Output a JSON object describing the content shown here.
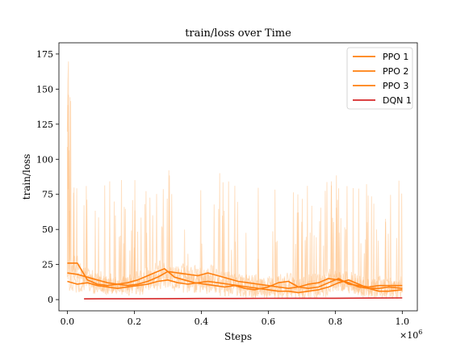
{
  "chart_data": {
    "type": "line",
    "title": "train/loss over Time",
    "xlabel": "Steps",
    "ylabel": "train/loss",
    "x_multiplier_label": "×10",
    "x_multiplier_exp": "6",
    "xlim": [
      -0.025,
      1.045
    ],
    "ylim": [
      -8,
      183
    ],
    "x_ticks": [
      0.0,
      0.2,
      0.4,
      0.6,
      0.8,
      1.0
    ],
    "x_tick_labels": [
      "0.0",
      "0.2",
      "0.4",
      "0.6",
      "0.8",
      "1.0"
    ],
    "y_ticks": [
      0,
      25,
      50,
      75,
      100,
      125,
      150,
      175
    ],
    "y_tick_labels": [
      "0",
      "25",
      "50",
      "75",
      "100",
      "125",
      "150",
      "175"
    ],
    "grid": false,
    "legend_position": "top-right",
    "series": [
      {
        "name": "PPO 1",
        "color": "#ff7f0e",
        "x": [
          0.0,
          0.03,
          0.06,
          0.09,
          0.12,
          0.15,
          0.18,
          0.21,
          0.24,
          0.27,
          0.29,
          0.32,
          0.35,
          0.38,
          0.41,
          0.44,
          0.47,
          0.5,
          0.53,
          0.56,
          0.6,
          0.63,
          0.66,
          0.69,
          0.72,
          0.75,
          0.78,
          0.81,
          0.84,
          0.87,
          0.9,
          0.93,
          0.96,
          1.0
        ],
        "y": [
          26,
          26,
          14,
          11,
          10,
          11,
          12,
          14,
          17,
          20,
          22,
          16,
          14,
          12,
          11,
          10,
          9,
          10,
          8,
          7,
          9,
          12,
          13,
          9,
          8,
          9,
          12,
          15,
          11,
          10,
          9,
          10,
          10,
          10
        ]
      },
      {
        "name": "PPO 2",
        "color": "#ff7f0e",
        "x": [
          0.0,
          0.03,
          0.06,
          0.09,
          0.12,
          0.15,
          0.18,
          0.21,
          0.24,
          0.27,
          0.3,
          0.33,
          0.36,
          0.39,
          0.42,
          0.45,
          0.48,
          0.51,
          0.54,
          0.57,
          0.6,
          0.63,
          0.66,
          0.69,
          0.72,
          0.75,
          0.78,
          0.81,
          0.84,
          0.87,
          0.9,
          0.93,
          0.96,
          1.0
        ],
        "y": [
          19,
          18,
          16,
          14,
          12,
          11,
          10,
          11,
          13,
          16,
          20,
          19,
          18,
          17,
          19,
          17,
          15,
          13,
          12,
          11,
          10,
          9,
          8,
          9,
          11,
          12,
          15,
          14,
          12,
          9,
          8,
          8,
          9,
          8
        ]
      },
      {
        "name": "PPO 3",
        "color": "#ff7f0e",
        "x": [
          0.0,
          0.03,
          0.06,
          0.09,
          0.12,
          0.15,
          0.18,
          0.21,
          0.24,
          0.27,
          0.3,
          0.33,
          0.36,
          0.39,
          0.42,
          0.45,
          0.48,
          0.51,
          0.54,
          0.57,
          0.6,
          0.63,
          0.66,
          0.69,
          0.72,
          0.75,
          0.78,
          0.81,
          0.84,
          0.87,
          0.9,
          0.93,
          0.96,
          1.0
        ],
        "y": [
          13,
          11,
          12,
          10,
          9,
          8,
          9,
          10,
          11,
          13,
          14,
          12,
          11,
          12,
          13,
          12,
          11,
          10,
          9,
          8,
          7,
          6,
          6,
          5,
          6,
          7,
          9,
          12,
          14,
          11,
          8,
          6,
          6,
          7
        ]
      },
      {
        "name": "DQN 1",
        "color": "#d62728",
        "x": [
          0.05,
          0.1,
          0.2,
          0.3,
          0.4,
          0.5,
          0.6,
          0.7,
          0.8,
          0.9,
          1.0
        ],
        "y": [
          0.5,
          0.6,
          0.6,
          0.7,
          0.8,
          0.8,
          0.9,
          1.0,
          1.0,
          1.1,
          1.2
        ]
      }
    ]
  }
}
